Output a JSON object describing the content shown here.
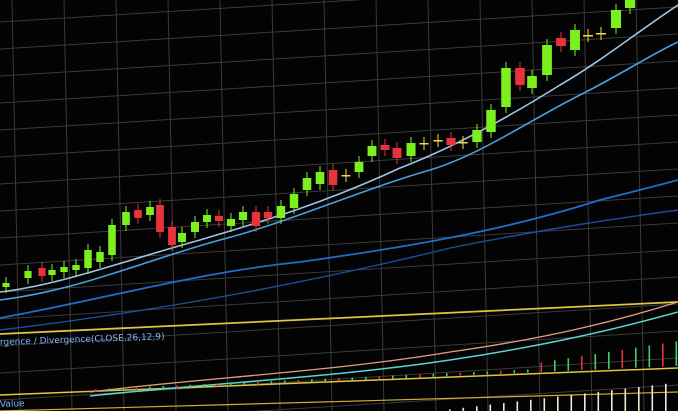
{
  "labels": {
    "indicator": "rgence / Divergence(CLOSE,26,12,9)",
    "value": "Value"
  }
}
